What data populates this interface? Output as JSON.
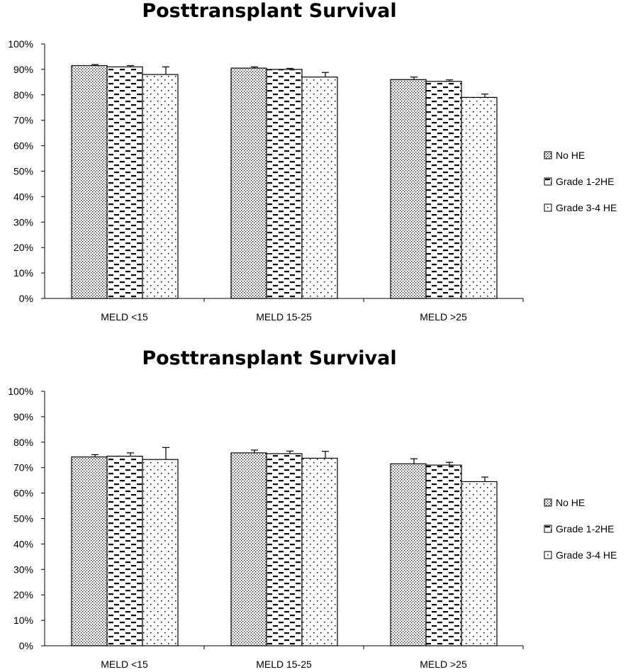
{
  "chart_data": [
    {
      "type": "bar",
      "title": "Posttransplant Survival",
      "categories": [
        "MELD <15",
        "MELD 15-25",
        "MELD >25"
      ],
      "series": [
        {
          "name": "No HE",
          "values": [
            0.915,
            0.905,
            0.86
          ],
          "errors": [
            0.004,
            0.005,
            0.01
          ],
          "pattern": "dense-dots"
        },
        {
          "name": "Grade 1-2HE",
          "values": [
            0.91,
            0.9,
            0.853
          ],
          "errors": [
            0.005,
            0.004,
            0.006
          ],
          "pattern": "dashes"
        },
        {
          "name": "Grade 3-4 HE",
          "values": [
            0.88,
            0.87,
            0.79
          ],
          "errors": [
            0.03,
            0.018,
            0.013
          ],
          "pattern": "sparse-dots"
        }
      ],
      "ylim": [
        0,
        1
      ],
      "yticks": [
        "0%",
        "10%",
        "20%",
        "30%",
        "40%",
        "50%",
        "60%",
        "70%",
        "80%",
        "90%",
        "100%"
      ],
      "xlabel": "",
      "ylabel": "",
      "grid": false,
      "legend_position": "right"
    },
    {
      "type": "bar",
      "title": "Posttransplant Survival",
      "categories": [
        "MELD <15",
        "MELD 15-25",
        "MELD >25"
      ],
      "series": [
        {
          "name": "No HE",
          "values": [
            0.742,
            0.758,
            0.715
          ],
          "errors": [
            0.009,
            0.011,
            0.02
          ],
          "pattern": "dense-dots"
        },
        {
          "name": "Grade 1-2HE",
          "values": [
            0.745,
            0.755,
            0.71
          ],
          "errors": [
            0.013,
            0.01,
            0.011
          ],
          "pattern": "dashes"
        },
        {
          "name": "Grade 3-4 HE",
          "values": [
            0.732,
            0.737,
            0.645
          ],
          "errors": [
            0.047,
            0.027,
            0.018
          ],
          "pattern": "sparse-dots"
        }
      ],
      "ylim": [
        0,
        1
      ],
      "yticks": [
        "0%",
        "10%",
        "20%",
        "30%",
        "40%",
        "50%",
        "60%",
        "70%",
        "80%",
        "90%",
        "100%"
      ],
      "xlabel": "",
      "ylabel": "",
      "grid": false,
      "legend_position": "right"
    }
  ]
}
